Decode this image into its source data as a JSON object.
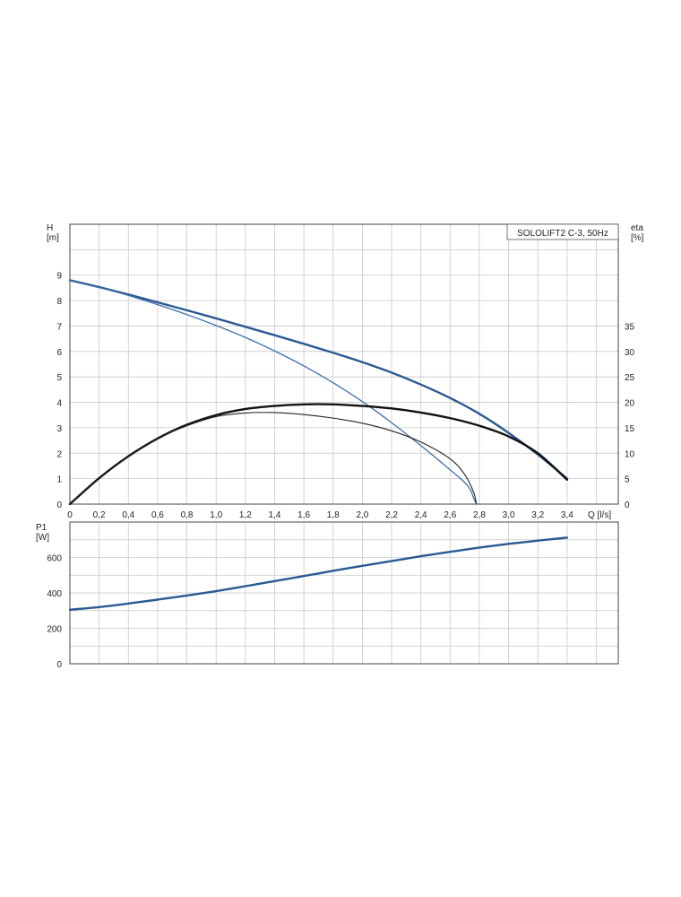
{
  "chart_data": [
    {
      "type": "line",
      "title": "SOLOLIFT2 C-3, 50Hz",
      "xlabel": "Q [l/s]",
      "ylabel": "H\n[m]",
      "ylabel_right": "eta\n[%]",
      "x_ticks": [
        "0",
        "0,2",
        "0,4",
        "0,6",
        "0,8",
        "1,0",
        "1,2",
        "1,4",
        "1,6",
        "1,8",
        "2,0",
        "2,2",
        "2,4",
        "2,6",
        "2,8",
        "3,0",
        "3,2",
        "3,4"
      ],
      "y_ticks": [
        "0",
        "1",
        "2",
        "3",
        "4",
        "5",
        "6",
        "7",
        "8",
        "9"
      ],
      "y_right_ticks": [
        "0",
        "5",
        "10",
        "15",
        "20",
        "25",
        "30",
        "35"
      ],
      "xlim": [
        0,
        3.75
      ],
      "ylim": [
        0,
        11
      ],
      "y_right_lim": [
        0,
        55
      ],
      "grid": true,
      "series": [
        {
          "axis": "left",
          "color": "#2a5a92",
          "width": 2.4,
          "x": [
            0,
            0.2,
            0.4,
            0.6,
            0.8,
            1.0,
            1.2,
            1.4,
            1.6,
            1.8,
            2.0,
            2.2,
            2.4,
            2.6,
            2.8,
            3.0,
            3.2,
            3.4
          ],
          "values": [
            8.8,
            8.53,
            8.24,
            7.93,
            7.62,
            7.3,
            6.97,
            6.64,
            6.3,
            5.95,
            5.58,
            5.17,
            4.7,
            4.17,
            3.55,
            2.8,
            1.95,
            1.0
          ]
        },
        {
          "axis": "left",
          "color": "#3f6fa6",
          "width": 1.3,
          "x": [
            0,
            0.2,
            0.4,
            0.6,
            0.8,
            1.0,
            1.2,
            1.4,
            1.6,
            1.8,
            2.0,
            2.2,
            2.4,
            2.6,
            2.7,
            2.74,
            2.76,
            2.78
          ],
          "values": [
            8.8,
            8.52,
            8.2,
            7.84,
            7.45,
            7.02,
            6.55,
            6.02,
            5.43,
            4.77,
            4.03,
            3.2,
            2.3,
            1.35,
            0.85,
            0.55,
            0.25,
            0
          ]
        },
        {
          "axis": "right",
          "color": "#111111",
          "width": 2.4,
          "x": [
            0,
            0.2,
            0.4,
            0.6,
            0.8,
            1.0,
            1.2,
            1.4,
            1.6,
            1.8,
            2.0,
            2.2,
            2.4,
            2.6,
            2.8,
            3.0,
            3.2,
            3.4
          ],
          "values": [
            0,
            5.1,
            9.4,
            12.9,
            15.6,
            17.5,
            18.7,
            19.3,
            19.6,
            19.6,
            19.3,
            18.8,
            18.0,
            16.9,
            15.4,
            13.3,
            10.0,
            4.8
          ]
        },
        {
          "axis": "right",
          "color": "#222222",
          "width": 1.1,
          "x": [
            0,
            0.2,
            0.4,
            0.6,
            0.8,
            1.0,
            1.2,
            1.4,
            1.6,
            1.8,
            2.0,
            2.2,
            2.4,
            2.6,
            2.7,
            2.76,
            2.78
          ],
          "values": [
            0,
            5.1,
            9.4,
            12.9,
            15.4,
            17.2,
            17.9,
            18.0,
            17.6,
            16.9,
            15.9,
            14.4,
            12.2,
            8.9,
            5.8,
            2.4,
            0
          ]
        }
      ]
    },
    {
      "type": "line",
      "xlabel": "",
      "ylabel": "P1\n[W]",
      "y_ticks": [
        "0",
        "200",
        "400",
        "600"
      ],
      "xlim": [
        0,
        3.75
      ],
      "ylim": [
        0,
        800
      ],
      "grid": true,
      "series": [
        {
          "color": "#2a5a92",
          "width": 2.4,
          "x": [
            0,
            0.2,
            0.4,
            0.6,
            0.8,
            1.0,
            1.2,
            1.4,
            1.6,
            1.8,
            2.0,
            2.2,
            2.4,
            2.6,
            2.8,
            3.0,
            3.2,
            3.4
          ],
          "values": [
            305,
            320,
            340,
            362,
            385,
            410,
            438,
            467,
            495,
            525,
            553,
            580,
            607,
            632,
            656,
            677,
            695,
            712
          ]
        }
      ]
    }
  ]
}
